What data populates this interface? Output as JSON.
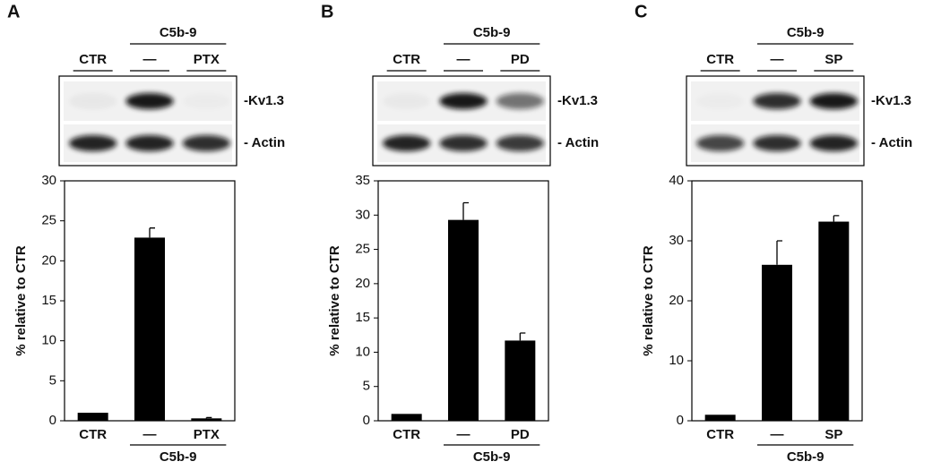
{
  "chart_data": [
    {
      "type": "bar",
      "panel": "A",
      "blot": {
        "lanes": [
          "CTR",
          "—",
          "PTX"
        ],
        "group": "C5b-9",
        "bands": [
          "-Kv1.3",
          "- Actin"
        ]
      },
      "y_label": "% relative to CTR",
      "categories": [
        "CTR",
        "—",
        "PTX"
      ],
      "group_label": "C5b-9",
      "values": [
        1.0,
        22.9,
        0.3
      ],
      "errors": [
        null,
        1.2,
        0.1
      ],
      "color": "#000000",
      "ylim": [
        0,
        30
      ],
      "yticks": [
        0,
        5,
        10,
        15,
        20,
        25,
        30
      ]
    },
    {
      "type": "bar",
      "panel": "B",
      "blot": {
        "lanes": [
          "CTR",
          "—",
          "PD"
        ],
        "group": "C5b-9",
        "bands": [
          "-Kv1.3",
          "- Actin"
        ]
      },
      "y_label": "% relative to CTR",
      "categories": [
        "CTR",
        "—",
        "PD"
      ],
      "group_label": "C5b-9",
      "values": [
        1.0,
        29.3,
        11.7
      ],
      "errors": [
        null,
        2.5,
        1.1
      ],
      "color": "#000000",
      "ylim": [
        0,
        35
      ],
      "yticks": [
        0,
        5,
        10,
        15,
        20,
        25,
        30,
        35
      ]
    },
    {
      "type": "bar",
      "panel": "C",
      "blot": {
        "lanes": [
          "CTR",
          "—",
          "SP"
        ],
        "group": "C5b-9",
        "bands": [
          "-Kv1.3",
          "- Actin"
        ]
      },
      "y_label": "% relative to CTR",
      "categories": [
        "CTR",
        "—",
        "SP"
      ],
      "group_label": "C5b-9",
      "values": [
        1.0,
        26.0,
        33.2
      ],
      "errors": [
        null,
        4.0,
        1.0
      ],
      "color": "#000000",
      "ylim": [
        0,
        40
      ],
      "yticks": [
        0,
        10,
        20,
        30,
        40
      ]
    }
  ]
}
